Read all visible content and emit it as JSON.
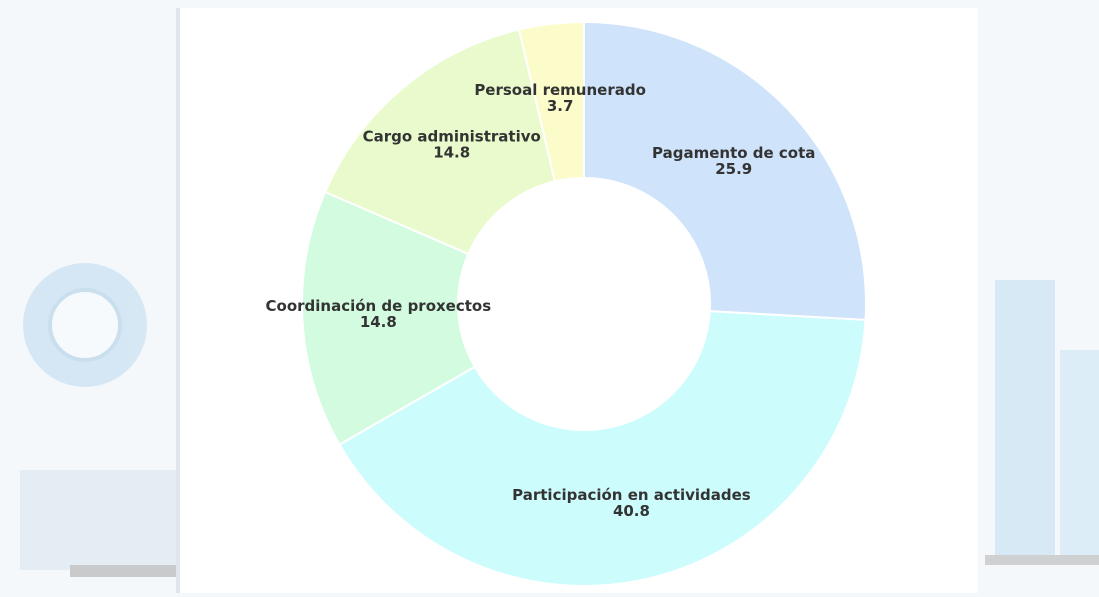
{
  "chart_data": {
    "type": "donut",
    "categories": [
      "Pagamento de cota",
      "Participación en actividades",
      "Coordinación de proxectos",
      "Cargo administrativo",
      "Persoal remunerado"
    ],
    "values": [
      25.9,
      40.8,
      14.8,
      14.8,
      3.7
    ],
    "colors": [
      "#cfe3fb",
      "#cdfcfc",
      "#d2fbe0",
      "#e9fbcc",
      "#fbfcc9"
    ]
  }
}
